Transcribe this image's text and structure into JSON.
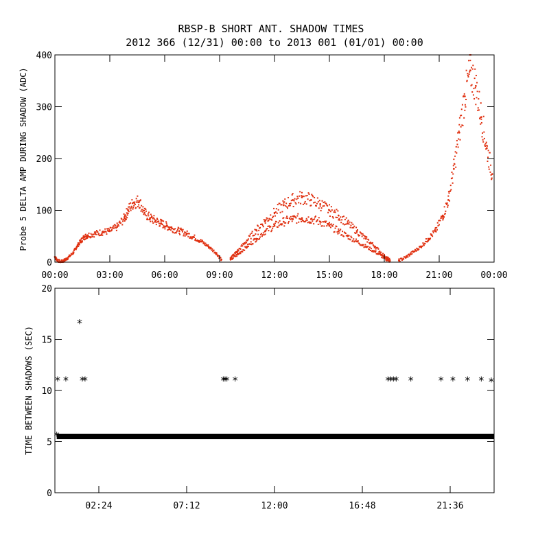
{
  "title": "RBSP-B SHORT ANT. SHADOW TIMES",
  "subtitle": "2012 366 (12/31) 00:00 to 2013 001 (01/01) 00:00",
  "chart_data": [
    {
      "type": "scatter",
      "ylabel": "Probe 5 DELTA AMP DURING SHADOW (ADC)",
      "xlabel": "",
      "x_unit": "hours",
      "xlim": [
        0,
        24
      ],
      "ylim": [
        0,
        400
      ],
      "xticks": [
        0,
        3,
        6,
        9,
        12,
        15,
        18,
        21,
        24
      ],
      "xtick_labels": [
        "00:00",
        "03:00",
        "06:00",
        "09:00",
        "12:00",
        "15:00",
        "18:00",
        "21:00",
        "00:00"
      ],
      "yticks": [
        0,
        100,
        200,
        300,
        400
      ],
      "ytick_labels": [
        "0",
        "100",
        "200",
        "300",
        "400"
      ],
      "point_color": "#e03010",
      "series": [
        {
          "segments": [
            {
              "x": [
                0.0,
                0.1,
                0.3,
                0.5,
                0.7,
                1.0,
                1.2,
                1.4,
                1.6,
                1.8,
                2.2,
                2.6,
                3.0,
                3.4,
                3.8,
                4.0,
                4.3,
                4.6,
                4.9,
                5.2,
                5.5,
                5.8,
                6.1,
                6.4,
                6.8,
                7.2,
                7.6,
                8.0,
                8.4,
                8.8,
                9.1
              ],
              "y": [
                10,
                5,
                0,
                3,
                8,
                18,
                30,
                40,
                48,
                52,
                55,
                58,
                60,
                68,
                85,
                100,
                115,
                118,
                95,
                85,
                80,
                75,
                70,
                65,
                60,
                55,
                48,
                40,
                30,
                18,
                5
              ]
            },
            {
              "x": [
                9.6,
                10.0,
                10.5,
                11.0,
                11.5,
                12.0,
                12.5,
                13.0,
                13.5,
                14.0,
                14.5,
                15.0,
                15.5,
                16.0,
                16.5,
                17.0,
                17.5,
                18.0,
                18.3
              ],
              "y": [
                5,
                15,
                30,
                45,
                60,
                70,
                78,
                83,
                85,
                83,
                78,
                70,
                60,
                50,
                40,
                30,
                20,
                8,
                2
              ]
            },
            {
              "x": [
                9.6,
                10.0,
                10.5,
                11.0,
                11.5,
                12.0,
                12.5,
                13.0,
                13.5,
                14.0,
                14.5,
                15.0,
                15.5,
                16.0,
                16.5,
                17.0,
                17.5,
                18.0,
                18.3
              ],
              "y": [
                8,
                22,
                42,
                62,
                80,
                95,
                110,
                120,
                125,
                120,
                112,
                100,
                90,
                75,
                60,
                45,
                30,
                12,
                4
              ]
            },
            {
              "x": [
                18.8,
                19.2,
                19.6,
                20.0,
                20.4,
                20.8,
                21.2,
                21.5,
                21.8,
                22.1,
                22.4,
                22.7,
                23.0,
                23.3,
                23.6,
                23.9
              ],
              "y": [
                3,
                10,
                20,
                30,
                45,
                60,
                90,
                120,
                180,
                250,
                320,
                370,
                340,
                280,
                220,
                170
              ]
            }
          ]
        }
      ]
    },
    {
      "type": "scatter",
      "ylabel": "TIME BETWEEN SHADOWS (SEC)",
      "xlabel": "",
      "x_unit": "hours",
      "xlim": [
        0,
        24
      ],
      "ylim": [
        0,
        20
      ],
      "xticks": [
        2.4,
        7.2,
        12.0,
        16.8,
        21.6
      ],
      "xtick_labels": [
        "02:24",
        "07:12",
        "12:00",
        "16:48",
        "21:36"
      ],
      "yticks": [
        0,
        5,
        10,
        15,
        20
      ],
      "ytick_labels": [
        "0",
        "5",
        "10",
        "15",
        "20"
      ],
      "point_color": "#000000",
      "marker": "*",
      "baseline": {
        "y": 5.5,
        "x_start": 0.1,
        "x_end": 24
      },
      "series": [
        {
          "x": [
            0.1,
            0.15,
            0.6,
            1.35,
            1.5,
            1.65,
            9.2,
            9.3,
            9.4,
            9.5,
            9.85,
            18.2,
            18.35,
            18.5,
            18.65,
            19.45,
            21.1,
            21.75,
            22.55,
            23.3,
            23.85
          ],
          "y": [
            5.6,
            11.0,
            11.0,
            16.6,
            11.0,
            11.0,
            11.0,
            11.0,
            11.0,
            5.4,
            11.0,
            11.0,
            11.0,
            11.0,
            11.0,
            11.0,
            11.0,
            11.0,
            11.0,
            11.0,
            10.9
          ]
        }
      ]
    }
  ]
}
